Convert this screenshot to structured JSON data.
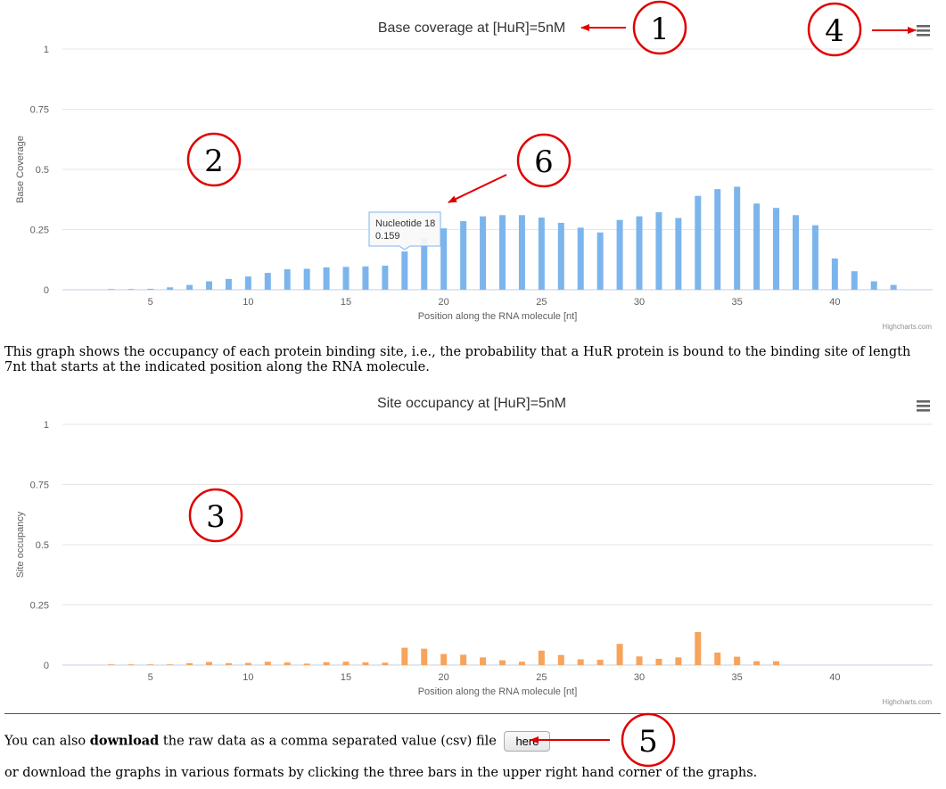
{
  "charts": {
    "chart_data": [
      {
        "type": "bar",
        "title": "Base coverage at [HuR]=5nM",
        "xlabel": "Position along the RNA molecule [nt]",
        "ylabel": "Base Coverage",
        "x": [
          3,
          4,
          5,
          6,
          7,
          8,
          9,
          10,
          11,
          12,
          13,
          14,
          15,
          16,
          17,
          18,
          19,
          20,
          21,
          22,
          23,
          24,
          25,
          26,
          27,
          28,
          29,
          30,
          31,
          32,
          33,
          34,
          35,
          36,
          37,
          38,
          39,
          40,
          41,
          42,
          43
        ],
        "values": [
          0.001,
          0.002,
          0.004,
          0.01,
          0.02,
          0.035,
          0.045,
          0.055,
          0.07,
          0.085,
          0.087,
          0.093,
          0.095,
          0.097,
          0.1,
          0.159,
          0.215,
          0.255,
          0.285,
          0.305,
          0.31,
          0.31,
          0.3,
          0.278,
          0.258,
          0.238,
          0.29,
          0.305,
          0.322,
          0.298,
          0.39,
          0.418,
          0.428,
          0.358,
          0.34,
          0.31,
          0.268,
          0.13,
          0.077,
          0.035,
          0.02
        ],
        "xticks": [
          5,
          10,
          15,
          20,
          25,
          30,
          35,
          40
        ],
        "yticks": [
          "0",
          "0.25",
          "0.5",
          "0.75",
          "1"
        ],
        "ylim": [
          0,
          1
        ],
        "xlim": [
          0.5,
          45
        ],
        "color": "#7cb5ec",
        "grid": true,
        "credits": "Highcharts.com",
        "tooltip": {
          "title": "Nucleotide 18",
          "value": "0.159",
          "x": 18
        }
      },
      {
        "type": "bar",
        "title": "Site occupancy at [HuR]=5nM",
        "xlabel": "Position along the RNA molecule [nt]",
        "ylabel": "Site occupancy",
        "x": [
          3,
          4,
          5,
          6,
          7,
          8,
          9,
          10,
          11,
          12,
          13,
          14,
          15,
          16,
          17,
          18,
          19,
          20,
          21,
          22,
          23,
          24,
          25,
          26,
          27,
          28,
          29,
          30,
          31,
          32,
          33,
          34,
          35,
          36,
          37
        ],
        "values": [
          0.001,
          0.001,
          0.002,
          0.003,
          0.008,
          0.013,
          0.008,
          0.009,
          0.014,
          0.011,
          0.006,
          0.012,
          0.014,
          0.011,
          0.01,
          0.072,
          0.068,
          0.046,
          0.043,
          0.032,
          0.02,
          0.014,
          0.06,
          0.042,
          0.024,
          0.022,
          0.088,
          0.036,
          0.026,
          0.032,
          0.137,
          0.052,
          0.035,
          0.016,
          0.016
        ],
        "xticks": [
          5,
          10,
          15,
          20,
          25,
          30,
          35,
          40
        ],
        "yticks": [
          "0",
          "0.25",
          "0.5",
          "0.75",
          "1"
        ],
        "ylim": [
          0,
          1
        ],
        "xlim": [
          0.5,
          45
        ],
        "color": "#f7a35c",
        "grid": true,
        "credits": "Highcharts.com"
      }
    ]
  },
  "annotations": [
    "1",
    "2",
    "3",
    "4",
    "5",
    "6"
  ],
  "colors": {
    "annotation": "#e00000",
    "menu_icon": "#666666"
  },
  "text": {
    "occupancy_description": "This graph shows the occupancy of each protein binding site, i.e., the probability that a HuR protein is bound to the binding site of length 7nt that starts at the indicated position along the RNA molecule.",
    "download_prefix": "You can also ",
    "download_bold": "download",
    "download_suffix": " the raw data as a comma separated value (csv) file",
    "download_button": "here",
    "footer_text": "or download the graphs in various formats by clicking the three bars in the upper right hand corner of the graphs."
  },
  "icons": {
    "chart_menu": "hamburger-menu-icon"
  }
}
